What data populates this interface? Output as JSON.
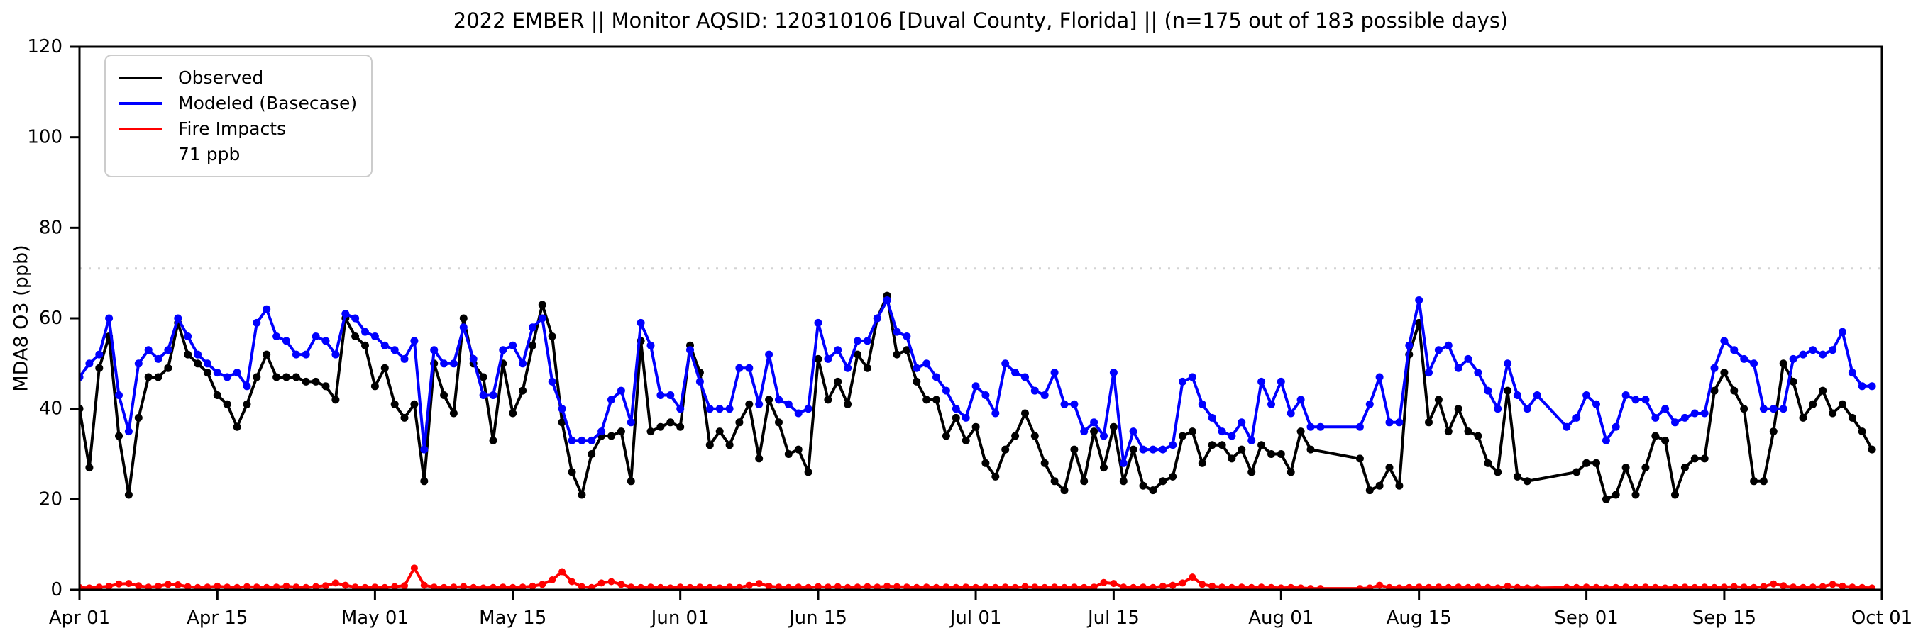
{
  "chart_data": {
    "type": "line",
    "title": "2022 EMBER || Monitor AQSID: 120310106 [Duval County, Florida] || (n=175 out of 183 possible days)",
    "ylabel": "MDA8 O3 (ppb)",
    "xlabel": "",
    "ylim": [
      0,
      120
    ],
    "yticks": [
      0,
      20,
      40,
      60,
      80,
      100,
      120
    ],
    "n_days": 183,
    "x_start_label": "Apr 01",
    "x_end_label": "Oct 01",
    "grid": false,
    "legend_position": "upper left",
    "background": "#ffffff",
    "xticks": [
      {
        "label": "Apr 01",
        "day": 0
      },
      {
        "label": "Apr 15",
        "day": 14
      },
      {
        "label": "May 01",
        "day": 30
      },
      {
        "label": "May 15",
        "day": 44
      },
      {
        "label": "Jun 01",
        "day": 61
      },
      {
        "label": "Jun 15",
        "day": 75
      },
      {
        "label": "Jul 01",
        "day": 91
      },
      {
        "label": "Jul 15",
        "day": 105
      },
      {
        "label": "Aug 01",
        "day": 122
      },
      {
        "label": "Aug 15",
        "day": 136
      },
      {
        "label": "Sep 01",
        "day": 153
      },
      {
        "label": "Sep 15",
        "day": 167
      },
      {
        "label": "Oct 01",
        "day": 183
      }
    ],
    "threshold": {
      "value": 71,
      "label": "71 ppb",
      "color": "#d3d3d3",
      "style": "dotted"
    },
    "stats": {
      "observed_days": 175,
      "possible_days": 183
    },
    "legend": [
      {
        "label": "Observed",
        "color": "#000000",
        "style": "solid"
      },
      {
        "label": "Modeled (Basecase)",
        "color": "#0000ff",
        "style": "solid"
      },
      {
        "label": "Fire Impacts",
        "color": "#ff0000",
        "style": "solid"
      },
      {
        "label": "71 ppb",
        "color": "#d3d3d3",
        "style": "dotted"
      }
    ],
    "series": [
      {
        "name": "Observed",
        "color": "#000000",
        "marker": "circle",
        "values": [
          40,
          27,
          49,
          56,
          34,
          21,
          38,
          47,
          47,
          49,
          59,
          52,
          50,
          48,
          43,
          41,
          36,
          41,
          47,
          52,
          47,
          47,
          47,
          46,
          46,
          45,
          42,
          60,
          56,
          54,
          45,
          49,
          41,
          38,
          41,
          24,
          50,
          43,
          39,
          60,
          50,
          47,
          33,
          50,
          39,
          44,
          54,
          63,
          56,
          37,
          26,
          21,
          30,
          34,
          34,
          35,
          24,
          55,
          35,
          36,
          37,
          36,
          54,
          48,
          32,
          35,
          32,
          37,
          41,
          29,
          42,
          37,
          30,
          31,
          26,
          51,
          42,
          46,
          41,
          52,
          49,
          60,
          65,
          52,
          53,
          46,
          42,
          42,
          34,
          38,
          33,
          36,
          28,
          25,
          31,
          34,
          39,
          34,
          28,
          24,
          22,
          31,
          24,
          35,
          27,
          36,
          24,
          31,
          23,
          22,
          24,
          25,
          34,
          35,
          28,
          32,
          32,
          29,
          31,
          26,
          32,
          30,
          30,
          26,
          35,
          31,
          null,
          null,
          null,
          null,
          29,
          22,
          23,
          27,
          23,
          52,
          59,
          37,
          42,
          35,
          40,
          35,
          34,
          28,
          26,
          44,
          25,
          24,
          null,
          null,
          null,
          null,
          26,
          28,
          28,
          20,
          21,
          27,
          21,
          27,
          34,
          33,
          21,
          27,
          29,
          29,
          44,
          48,
          44,
          40,
          24,
          24,
          35,
          50,
          46,
          38,
          41,
          44,
          39,
          41,
          38,
          35,
          31
        ]
      },
      {
        "name": "Modeled (Basecase)",
        "color": "#0000ff",
        "marker": "circle",
        "values": [
          47,
          50,
          52,
          60,
          43,
          35,
          50,
          53,
          51,
          53,
          60,
          56,
          52,
          50,
          48,
          47,
          48,
          45,
          59,
          62,
          56,
          55,
          52,
          52,
          56,
          55,
          52,
          61,
          60,
          57,
          56,
          54,
          53,
          51,
          55,
          31,
          53,
          50,
          50,
          58,
          51,
          43,
          43,
          53,
          54,
          50,
          58,
          60,
          46,
          40,
          33,
          33,
          33,
          35,
          42,
          44,
          37,
          59,
          54,
          43,
          43,
          40,
          53,
          46,
          40,
          40,
          40,
          49,
          49,
          41,
          52,
          42,
          41,
          39,
          40,
          59,
          51,
          53,
          49,
          55,
          55,
          60,
          64,
          57,
          56,
          49,
          50,
          47,
          44,
          40,
          38,
          45,
          43,
          39,
          50,
          48,
          47,
          44,
          43,
          48,
          41,
          41,
          35,
          37,
          34,
          48,
          28,
          35,
          31,
          31,
          31,
          32,
          46,
          47,
          41,
          38,
          35,
          34,
          37,
          33,
          46,
          41,
          46,
          39,
          42,
          36,
          36,
          null,
          null,
          null,
          36,
          41,
          47,
          37,
          37,
          54,
          64,
          48,
          53,
          54,
          49,
          51,
          48,
          44,
          40,
          50,
          43,
          40,
          43,
          null,
          null,
          36,
          38,
          43,
          41,
          33,
          36,
          43,
          42,
          42,
          38,
          40,
          37,
          38,
          39,
          39,
          49,
          55,
          53,
          51,
          50,
          40,
          40,
          40,
          51,
          52,
          53,
          52,
          53,
          57,
          48,
          45,
          45
        ]
      },
      {
        "name": "Fire Impacts",
        "color": "#ff0000",
        "marker": "circle",
        "values": [
          0.5,
          0.4,
          0.6,
          0.8,
          1.3,
          1.4,
          0.9,
          0.6,
          0.8,
          1.2,
          1.1,
          0.7,
          0.5,
          0.6,
          0.8,
          0.6,
          0.5,
          0.7,
          0.6,
          0.5,
          0.6,
          0.8,
          0.6,
          0.5,
          0.7,
          0.9,
          1.5,
          1.0,
          0.6,
          0.5,
          0.6,
          0.5,
          0.7,
          0.9,
          4.8,
          1.0,
          0.6,
          0.5,
          0.6,
          0.7,
          0.5,
          0.4,
          0.5,
          0.6,
          0.5,
          0.6,
          0.8,
          1.2,
          2.2,
          4.0,
          1.8,
          0.7,
          0.5,
          1.5,
          1.8,
          1.2,
          0.6,
          0.5,
          0.6,
          0.5,
          0.4,
          0.6,
          0.5,
          0.6,
          0.5,
          0.4,
          0.6,
          0.5,
          1.0,
          1.4,
          0.8,
          0.6,
          0.5,
          0.6,
          0.5,
          0.7,
          0.6,
          0.7,
          0.5,
          0.6,
          0.7,
          0.6,
          0.8,
          0.7,
          0.6,
          0.5,
          0.6,
          0.5,
          0.6,
          0.5,
          0.6,
          0.5,
          0.6,
          0.5,
          0.6,
          0.5,
          0.7,
          0.6,
          0.5,
          0.6,
          0.5,
          0.6,
          0.5,
          0.6,
          1.6,
          1.4,
          0.6,
          0.5,
          0.6,
          0.5,
          0.8,
          1.0,
          1.5,
          2.8,
          1.2,
          0.8,
          0.6,
          0.5,
          0.6,
          0.5,
          0.6,
          0.5,
          0.4,
          0.5,
          0.4,
          0.3,
          0.3,
          null,
          null,
          null,
          0.3,
          0.4,
          1.0,
          0.5,
          0.4,
          0.5,
          0.6,
          0.5,
          0.6,
          0.5,
          0.6,
          0.5,
          0.6,
          0.5,
          0.4,
          0.8,
          0.5,
          0.4,
          0.4,
          null,
          null,
          0.5,
          0.5,
          0.6,
          0.5,
          0.4,
          0.5,
          0.6,
          0.5,
          0.6,
          0.5,
          0.4,
          0.5,
          0.6,
          0.5,
          0.6,
          0.5,
          0.6,
          0.7,
          0.6,
          0.5,
          0.7,
          1.3,
          0.9,
          0.6,
          0.5,
          0.6,
          0.7,
          1.2,
          0.8,
          0.6,
          0.5,
          0.4
        ]
      }
    ]
  }
}
